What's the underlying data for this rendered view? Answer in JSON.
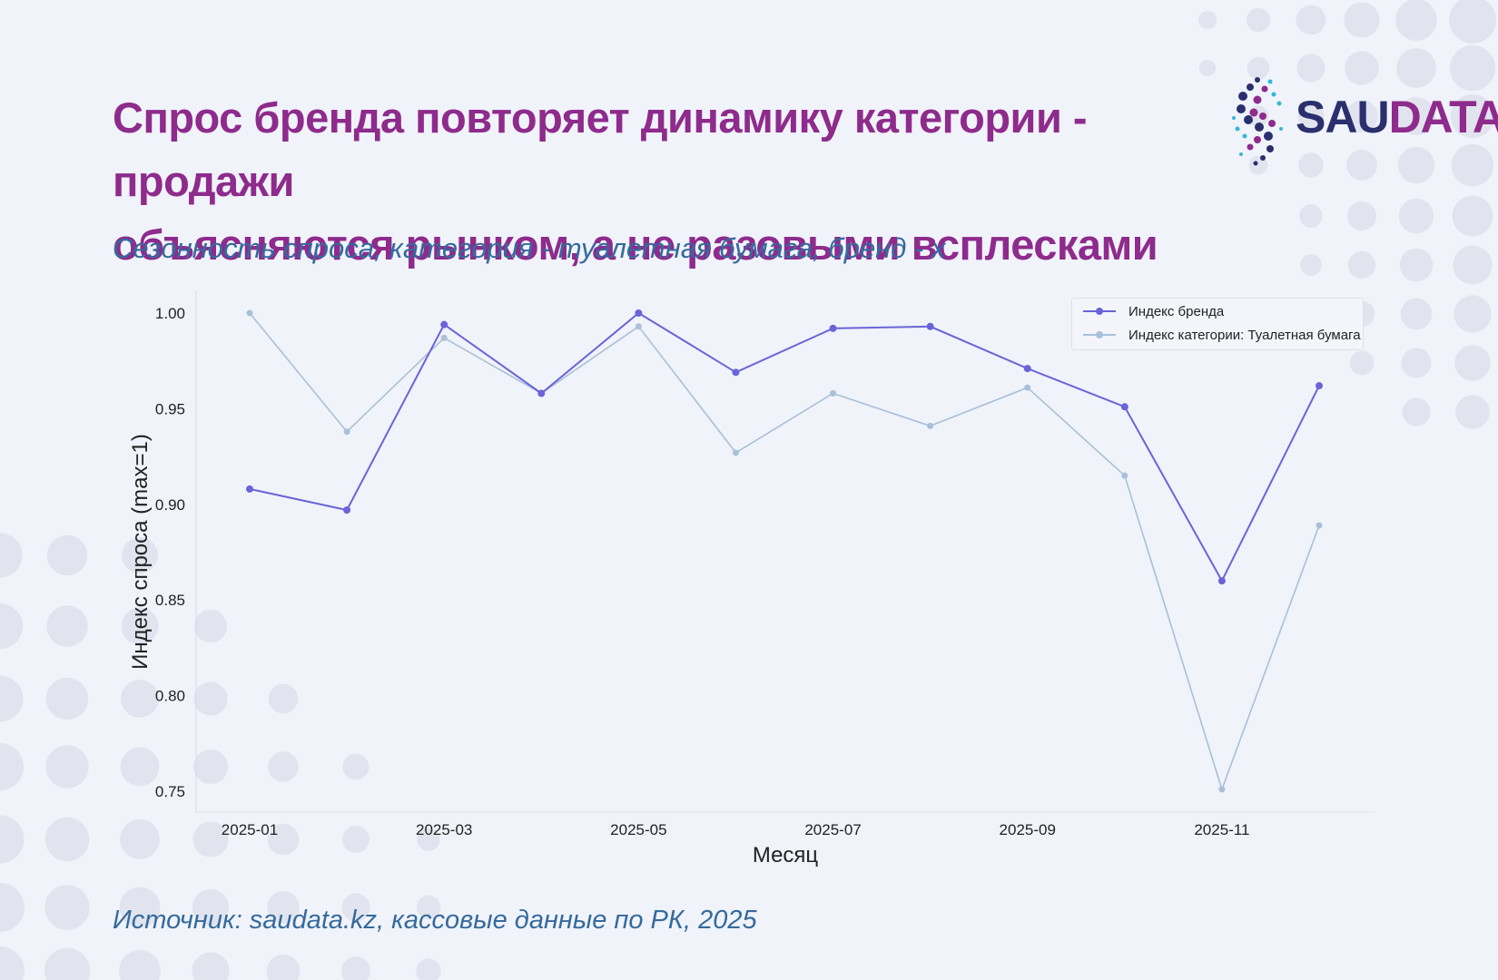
{
  "header": {
    "title_line1": "Спрос бренда повторяет динамику категории - продажи",
    "title_line2": "объясняются рынком, а не разовыми всплесками",
    "subtitle": "Сезонность спроса, категория - туалетная бумага, бренд - х"
  },
  "logo": {
    "text_main": "SAU",
    "text_accent": "DATA"
  },
  "footer": {
    "source": "Источник: saudata.kz, кассовые данные по РК,  2025"
  },
  "colors": {
    "brand": "#6b63d8",
    "category": "#a9c0d8",
    "title": "#8e2b8c",
    "subtitle": "#356a9d"
  },
  "chart_data": {
    "type": "line",
    "x": [
      "2025-01",
      "2025-02",
      "2025-03",
      "2025-04",
      "2025-05",
      "2025-06",
      "2025-07",
      "2025-08",
      "2025-09",
      "2025-10",
      "2025-11",
      "2025-12"
    ],
    "x_tick_labels": [
      "2025-01",
      "2025-03",
      "2025-05",
      "2025-07",
      "2025-09",
      "2025-11"
    ],
    "y_ticks": [
      0.75,
      0.8,
      0.85,
      0.9,
      0.95,
      1.0
    ],
    "y_tick_labels": [
      "0.75",
      "0.80",
      "0.85",
      "0.90",
      "0.95",
      "1.00"
    ],
    "ylim": [
      0.738,
      1.012
    ],
    "xlabel": "Месяц",
    "ylabel": "Индекс спроса (max=1)",
    "legend_position": "top-right",
    "grid": false,
    "series": [
      {
        "name": "Индекс бренда",
        "color": "#6b63d8",
        "values": [
          0.908,
          0.897,
          0.994,
          0.958,
          1.0,
          0.969,
          0.992,
          0.993,
          0.971,
          0.951,
          0.86,
          0.962
        ]
      },
      {
        "name": "Индекс категории: Туалетная бумага",
        "color": "#a9c0d8",
        "values": [
          1.0,
          0.938,
          0.987,
          0.958,
          0.993,
          0.927,
          0.958,
          0.941,
          0.961,
          0.915,
          0.751,
          0.889
        ]
      }
    ]
  }
}
